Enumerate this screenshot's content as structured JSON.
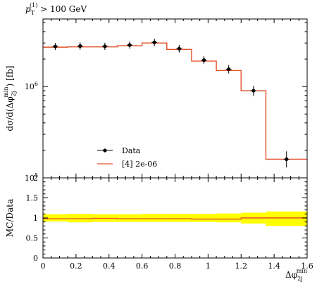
{
  "chart_data": [
    {
      "type": "line",
      "panel": "main",
      "annotation": "p_T^(1) > 100 GeV",
      "annotation_parts": {
        "base": "p",
        "sub": "T",
        "sup": "(1)",
        "rest": " > 100 GeV"
      },
      "ylabel": "dσ/d(Δφ_2j^min) [fb]",
      "ylabel_parts": {
        "pre": "dσ/d(Δφ",
        "sub": "2j",
        "sup": "min",
        "post": ") [fb]"
      },
      "y_scale": "log",
      "ylim": [
        100000,
        5500000
      ],
      "xlim": [
        0,
        1.6
      ],
      "y_tick_labels": [
        {
          "value": 100000,
          "base": "10",
          "exp": "5"
        },
        {
          "value": 1000000,
          "base": "10",
          "exp": "6"
        }
      ],
      "legend_placement": "lower-left",
      "series": [
        {
          "name": "Data",
          "style": "points",
          "color": "#000000",
          "x": [
            0.075,
            0.225,
            0.375,
            0.525,
            0.675,
            0.825,
            0.975,
            1.125,
            1.275,
            1.475
          ],
          "y": [
            2750000,
            2780000,
            2760000,
            2850000,
            3050000,
            2600000,
            1950000,
            1550000,
            900000,
            160000
          ],
          "yerr_up": [
            250000,
            270000,
            260000,
            270000,
            300000,
            260000,
            200000,
            170000,
            120000,
            35000
          ],
          "yerr_down": [
            230000,
            250000,
            240000,
            250000,
            280000,
            240000,
            190000,
            160000,
            110000,
            30000
          ]
        },
        {
          "name": "[4] 2e-06",
          "style": "step",
          "color": "#e4502a",
          "bin_edges": [
            0,
            0.15,
            0.3,
            0.45,
            0.6,
            0.75,
            0.9,
            1.05,
            1.2,
            1.35,
            1.6
          ],
          "values": [
            2700000,
            2720000,
            2720000,
            2800000,
            3000000,
            2550000,
            1900000,
            1500000,
            900000,
            160000
          ]
        }
      ]
    },
    {
      "type": "line",
      "panel": "ratio",
      "ylabel": "MC/Data",
      "xlabel": "Δφ_2j^min",
      "xlabel_parts": {
        "pre": "Δφ",
        "sub": "2j",
        "sup": "min"
      },
      "ylim": [
        0,
        2
      ],
      "xlim": [
        0,
        1.6
      ],
      "y_ticks": [
        "0",
        "0.5",
        "1",
        "1.5",
        "2"
      ],
      "x_ticks": [
        "0",
        "0.2",
        "0.4",
        "0.6",
        "0.8",
        "1",
        "1.2",
        "1.4",
        "1.6"
      ],
      "band_color": "#ffff00",
      "bin_edges": [
        0,
        0.15,
        0.3,
        0.45,
        0.6,
        0.75,
        0.9,
        1.05,
        1.2,
        1.35,
        1.6
      ],
      "band_upper": [
        1.09,
        1.1,
        1.09,
        1.09,
        1.1,
        1.1,
        1.1,
        1.11,
        1.13,
        1.16
      ],
      "band_lower": [
        0.91,
        0.89,
        0.9,
        0.9,
        0.9,
        0.9,
        0.9,
        0.89,
        0.86,
        0.8
      ],
      "ratio_values": [
        0.98,
        0.98,
        0.99,
        0.98,
        0.98,
        0.98,
        0.97,
        0.97,
        1.0,
        1.0
      ],
      "ratio_color": "#e4502a"
    }
  ]
}
